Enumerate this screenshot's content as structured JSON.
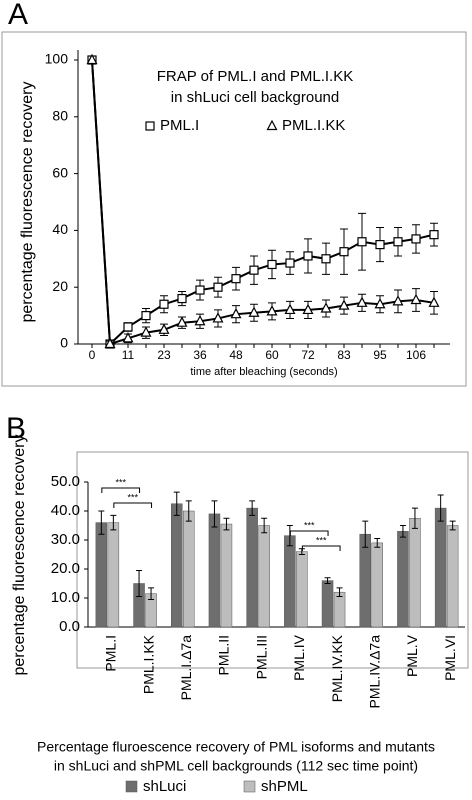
{
  "chart_data": [
    {
      "type": "line",
      "panel_label": "A",
      "title": [
        "FRAP of PML.I and PML.I.KK",
        "in shLuci cell background"
      ],
      "x_label": "time after bleaching (seconds)",
      "y_label": "percentage fluorescence recovery",
      "categories": [
        "0",
        null,
        "11",
        null,
        "23",
        null,
        "36",
        null,
        "48",
        null,
        "60",
        null,
        "72",
        null,
        "83",
        null,
        "95",
        null,
        "106",
        null
      ],
      "series": [
        {
          "name": "PML.I",
          "marker": "square",
          "color": "#000000",
          "values": [
            100,
            0,
            6,
            10,
            14,
            16,
            19,
            20,
            23,
            26,
            28,
            28.5,
            31,
            30,
            32.5,
            36,
            35,
            36,
            37,
            38.5
          ],
          "errors": [
            0,
            1,
            1.5,
            2.5,
            3,
            2.5,
            3.5,
            3.5,
            4,
            5,
            5,
            4,
            6,
            5.5,
            8,
            10,
            6,
            5,
            5,
            4
          ]
        },
        {
          "name": "PML.I.KK",
          "marker": "triangle",
          "color": "#000000",
          "values": [
            100,
            0,
            2,
            4,
            5,
            7.5,
            8,
            9,
            10.5,
            11,
            11.5,
            12,
            12,
            12.5,
            13.5,
            14.5,
            14,
            15,
            15.5,
            14.5
          ],
          "errors": [
            0,
            1,
            1.5,
            2,
            2,
            2,
            2.5,
            3,
            3,
            3,
            3,
            3,
            3,
            3,
            3,
            3,
            3,
            4,
            4,
            4
          ]
        }
      ],
      "ylim": [
        0,
        100
      ],
      "yticks": [
        0,
        20,
        40,
        60,
        80,
        100
      ]
    },
    {
      "type": "bar",
      "panel_label": "B",
      "title": [
        "Percentage fluroescence recovery of PML isoforms and mutants",
        "in shLuci and shPML cell backgrounds (112 sec time point)"
      ],
      "y_label": "percentage fluorescence recovery",
      "categories": [
        "PML.I",
        "PML.I.KK",
        "PML.I.Δ7a",
        "PML.II",
        "PML.III",
        "PML.IV",
        "PML.IV.KK",
        "PML.IV.Δ7a",
        "PML.V",
        "PML.VI"
      ],
      "series": [
        {
          "name": "shLuci",
          "color": "#6e6e6e",
          "values": [
            36,
            15,
            42.5,
            39,
            41,
            31.5,
            16,
            32,
            33,
            41
          ],
          "errors": [
            4,
            4.5,
            4,
            4.5,
            2.5,
            3.5,
            1,
            4.5,
            2,
            4.5
          ]
        },
        {
          "name": "shPML",
          "color": "#bdbdbd",
          "values": [
            36,
            11.5,
            40,
            35.5,
            35,
            26,
            12,
            29,
            37.5,
            35
          ],
          "errors": [
            2.5,
            2,
            3.5,
            2,
            2.5,
            1,
            1.5,
            1.5,
            3.5,
            1.5
          ]
        }
      ],
      "annotations": [
        "***",
        "***",
        "***",
        "***"
      ],
      "ylim": [
        0,
        50
      ],
      "yticks": [
        {
          "value": 0,
          "label": "0.0"
        },
        {
          "value": 10,
          "label": "10.0"
        },
        {
          "value": 20,
          "label": "20.0"
        },
        {
          "value": 30,
          "label": "30.0"
        },
        {
          "value": 40,
          "label": "40.0"
        },
        {
          "value": 50,
          "label": "50.0"
        }
      ]
    }
  ]
}
